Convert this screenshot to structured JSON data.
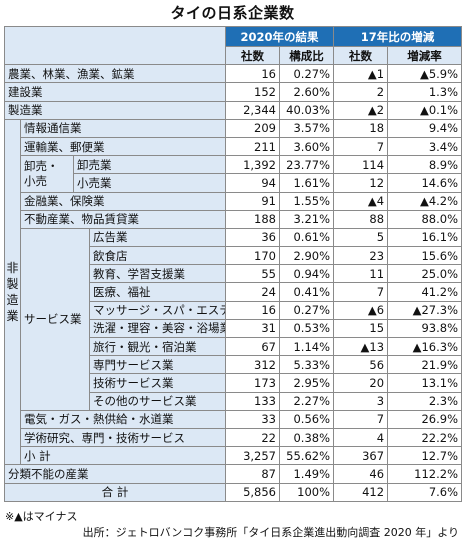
{
  "title": "タイの日系企業数",
  "header": {
    "group_2020": "2020年の結果",
    "group_change": "17年比の増減",
    "col_count": "社数",
    "col_ratio": "構成比",
    "col_diff": "社数",
    "col_rate": "増減率"
  },
  "rows": {
    "agri": {
      "label": "農業、林業、漁業、鉱業",
      "count": "16",
      "ratio": "0.27%",
      "diff": "▲1",
      "rate": "▲5.9%"
    },
    "construction": {
      "label": "建設業",
      "count": "152",
      "ratio": "2.60%",
      "diff": "2",
      "rate": "1.3%"
    },
    "manufacturing": {
      "label": "製造業",
      "count": "2,344",
      "ratio": "40.03%",
      "diff": "▲2",
      "rate": "▲0.1%"
    },
    "it": {
      "label": "情報通信業",
      "count": "209",
      "ratio": "3.57%",
      "diff": "18",
      "rate": "9.4%"
    },
    "transport": {
      "label": "運輸業、郵便業",
      "count": "211",
      "ratio": "3.60%",
      "diff": "7",
      "rate": "3.4%"
    },
    "wholesale": {
      "label": "卸売業",
      "count": "1,392",
      "ratio": "23.77%",
      "diff": "114",
      "rate": "8.9%"
    },
    "retail": {
      "label": "小売業",
      "count": "94",
      "ratio": "1.61%",
      "diff": "12",
      "rate": "14.6%"
    },
    "finance": {
      "label": "金融業、保険業",
      "count": "91",
      "ratio": "1.55%",
      "diff": "▲4",
      "rate": "▲4.2%"
    },
    "realestate": {
      "label": "不動産業、物品賃貸業",
      "count": "188",
      "ratio": "3.21%",
      "diff": "88",
      "rate": "88.0%"
    },
    "ad": {
      "label": "広告業",
      "count": "36",
      "ratio": "0.61%",
      "diff": "5",
      "rate": "16.1%"
    },
    "restaurant": {
      "label": "飲食店",
      "count": "170",
      "ratio": "2.90%",
      "diff": "23",
      "rate": "15.6%"
    },
    "education": {
      "label": "教育、学習支援業",
      "count": "55",
      "ratio": "0.94%",
      "diff": "11",
      "rate": "25.0%"
    },
    "medical": {
      "label": "医療、福祉",
      "count": "24",
      "ratio": "0.41%",
      "diff": "7",
      "rate": "41.2%"
    },
    "massage": {
      "label": "マッサージ・スパ・エステ",
      "count": "16",
      "ratio": "0.27%",
      "diff": "▲6",
      "rate": "▲27.3%"
    },
    "laundry": {
      "label": "洗濯・理容・美容・浴場業",
      "count": "31",
      "ratio": "0.53%",
      "diff": "15",
      "rate": "93.8%"
    },
    "travel": {
      "label": "旅行・観光・宿泊業",
      "count": "67",
      "ratio": "1.14%",
      "diff": "▲13",
      "rate": "▲16.3%"
    },
    "specialty": {
      "label": "専門サービス業",
      "count": "312",
      "ratio": "5.33%",
      "diff": "56",
      "rate": "21.9%"
    },
    "tech": {
      "label": "技術サービス業",
      "count": "173",
      "ratio": "2.95%",
      "diff": "20",
      "rate": "13.1%"
    },
    "otherservice": {
      "label": "その他のサービス業",
      "count": "133",
      "ratio": "2.27%",
      "diff": "3",
      "rate": "2.3%"
    },
    "utilities": {
      "label": "電気・ガス・熱供給・水道業",
      "count": "33",
      "ratio": "0.56%",
      "diff": "7",
      "rate": "26.9%"
    },
    "research": {
      "label": "学術研究、専門・技術サービス",
      "count": "22",
      "ratio": "0.38%",
      "diff": "4",
      "rate": "22.2%"
    },
    "subtotal": {
      "label": "小 計",
      "count": "3,257",
      "ratio": "55.62%",
      "diff": "367",
      "rate": "12.7%"
    },
    "unclassified": {
      "label": "分類不能の産業",
      "count": "87",
      "ratio": "1.49%",
      "diff": "46",
      "rate": "112.2%"
    },
    "total": {
      "label": "合 計",
      "count": "5,856",
      "ratio": "100%",
      "diff": "412",
      "rate": "7.6%"
    }
  },
  "groups": {
    "nonmfg_chars": [
      "非",
      "製",
      "造",
      "業"
    ],
    "trade_l1": "卸売・",
    "trade_l2": "小売",
    "service": "サービス業"
  },
  "note": "※▲はマイナス",
  "source": "出所：ジェトロバンコク事務所「タイ日系企業進出動向調査 2020 年」より"
}
